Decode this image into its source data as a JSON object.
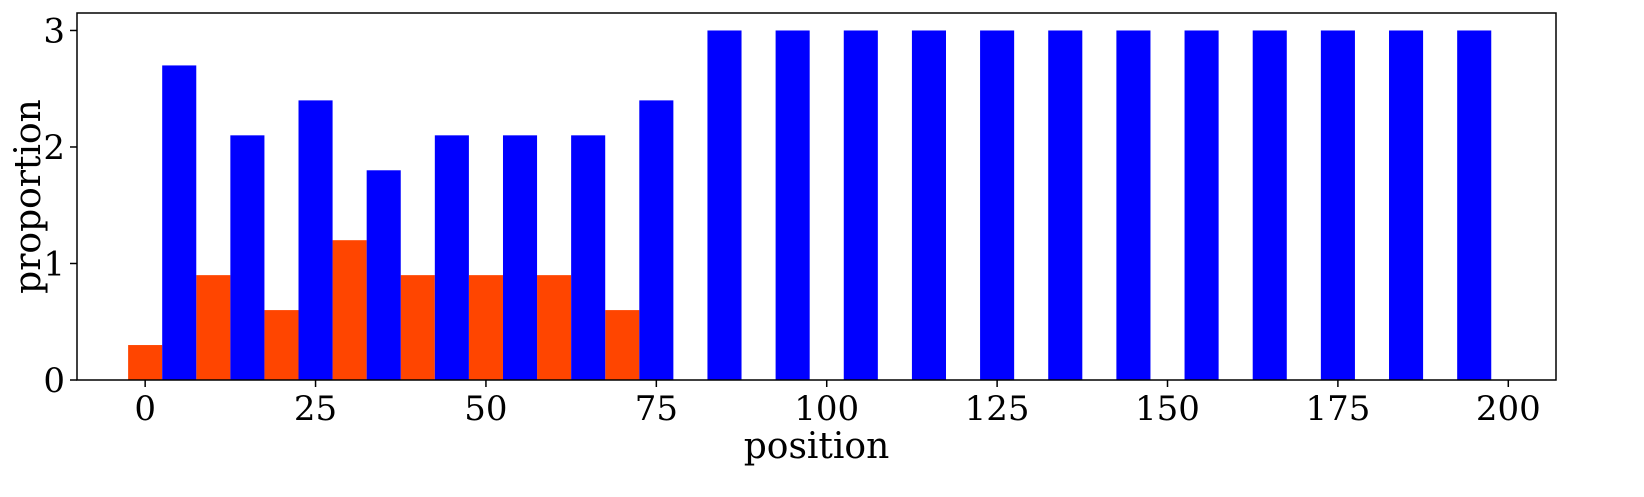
{
  "chart_data": {
    "type": "bar",
    "xlabel": "position",
    "ylabel": "proportion",
    "xlim": [
      -10,
      207
    ],
    "ylim": [
      0,
      3.15
    ],
    "x_ticks": [
      0,
      25,
      50,
      75,
      100,
      125,
      150,
      175,
      200
    ],
    "y_ticks": [
      0,
      1,
      2,
      3
    ],
    "grid": false,
    "legend": "none",
    "bar_width": 5,
    "series": [
      {
        "color": "#ff4500",
        "x": [
          0,
          10,
          20,
          30,
          40,
          50,
          60,
          70
        ],
        "values": [
          0.3,
          0.9,
          0.6,
          1.2,
          0.9,
          0.9,
          0.9,
          0.6
        ]
      },
      {
        "color": "#0000ff",
        "x": [
          5,
          15,
          25,
          35,
          45,
          55,
          65,
          75,
          85,
          95,
          105,
          115,
          125,
          135,
          145,
          155,
          165,
          175,
          185,
          195
        ],
        "values": [
          2.7,
          2.1,
          2.4,
          1.8,
          2.1,
          2.1,
          2.1,
          2.4,
          3,
          3,
          3,
          3,
          3,
          3,
          3,
          3,
          3,
          3,
          3,
          3
        ]
      }
    ]
  }
}
